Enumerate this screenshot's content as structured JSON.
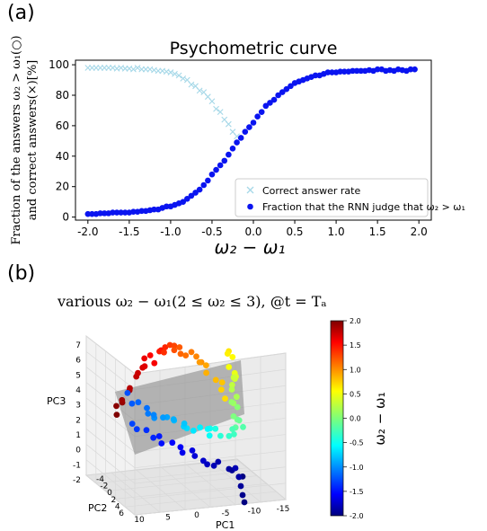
{
  "panel_a_label": "(a)",
  "panel_b_label": "(b)",
  "chart_data": [
    {
      "type": "scatter",
      "title": "Psychometric curve",
      "xlabel": "ω₂ − ω₁",
      "ylabel_line1": "Fraction of the answers ω₂ > ω₁(○)",
      "ylabel_line2": "and correct answers(×)[%]",
      "xlim": [
        -2.15,
        2.15
      ],
      "ylim": [
        -2,
        103
      ],
      "xticks": [
        "-2.0",
        "-1.5",
        "-1.0",
        "-0.5",
        "0.0",
        "0.5",
        "1.0",
        "1.5",
        "2.0"
      ],
      "xtick_values": [
        -2.0,
        -1.5,
        -1.0,
        -0.5,
        0.0,
        0.5,
        1.0,
        1.5,
        2.0
      ],
      "yticks": [
        "0",
        "20",
        "40",
        "60",
        "80",
        "100"
      ],
      "ytick_values": [
        0,
        20,
        40,
        60,
        80,
        100
      ],
      "grid": false,
      "legend_position": "lower-right",
      "series": [
        {
          "name": "Correct answer rate",
          "marker": "x",
          "color": "#a6d8e8",
          "x": [
            -2.0,
            -1.95,
            -1.9,
            -1.85,
            -1.8,
            -1.75,
            -1.7,
            -1.65,
            -1.6,
            -1.55,
            -1.5,
            -1.45,
            -1.4,
            -1.35,
            -1.3,
            -1.25,
            -1.2,
            -1.15,
            -1.1,
            -1.05,
            -1.0,
            -0.95,
            -0.9,
            -0.85,
            -0.8,
            -0.75,
            -0.7,
            -0.65,
            -0.6,
            -0.55,
            -0.5,
            -0.45,
            -0.4,
            -0.35,
            -0.3,
            -0.25,
            -0.2
          ],
          "y": [
            98,
            98,
            98,
            98,
            98,
            98,
            98,
            97.5,
            98,
            97.5,
            97.5,
            97,
            98,
            97,
            97,
            97,
            96.5,
            96,
            96,
            95.5,
            95,
            94,
            93,
            91,
            90,
            87,
            86,
            83,
            82,
            79,
            76,
            71,
            69,
            64,
            61,
            56,
            53
          ]
        },
        {
          "name": "Fraction that the RNN judge that ω₂ > ω₁",
          "marker": "o",
          "color": "#0a14f0",
          "x": [
            -2.0,
            -1.95,
            -1.9,
            -1.85,
            -1.8,
            -1.75,
            -1.7,
            -1.65,
            -1.6,
            -1.55,
            -1.5,
            -1.45,
            -1.4,
            -1.35,
            -1.3,
            -1.25,
            -1.2,
            -1.15,
            -1.1,
            -1.05,
            -1.0,
            -0.95,
            -0.9,
            -0.85,
            -0.8,
            -0.75,
            -0.7,
            -0.65,
            -0.6,
            -0.55,
            -0.5,
            -0.45,
            -0.4,
            -0.35,
            -0.3,
            -0.25,
            -0.2,
            -0.15,
            -0.1,
            -0.05,
            0.0,
            0.05,
            0.1,
            0.15,
            0.2,
            0.25,
            0.3,
            0.35,
            0.4,
            0.45,
            0.5,
            0.55,
            0.6,
            0.65,
            0.7,
            0.75,
            0.8,
            0.85,
            0.9,
            0.95,
            1.0,
            1.05,
            1.1,
            1.15,
            1.2,
            1.25,
            1.3,
            1.35,
            1.4,
            1.45,
            1.5,
            1.55,
            1.6,
            1.65,
            1.7,
            1.75,
            1.8,
            1.85,
            1.9,
            1.95
          ],
          "y": [
            2,
            2,
            2,
            2.5,
            2.5,
            2.5,
            3,
            3,
            3,
            3,
            3,
            3.5,
            3.5,
            4,
            4,
            4.5,
            5,
            5,
            6,
            7,
            7,
            8,
            9,
            10,
            12,
            14,
            16,
            18,
            21,
            24,
            28,
            31,
            34,
            37,
            41,
            45,
            49,
            52,
            56,
            59,
            62,
            66,
            69,
            73,
            75,
            77,
            80,
            82,
            84,
            86,
            88,
            89,
            90,
            91,
            92,
            93,
            93,
            94,
            95,
            95,
            95,
            95.5,
            95.5,
            95.5,
            96,
            96,
            96,
            96,
            96.5,
            96,
            97,
            97,
            96,
            96.5,
            96,
            97,
            96.5,
            96,
            97,
            97
          ]
        }
      ]
    },
    {
      "type": "scatter",
      "title": "various ω₂ − ω₁(2 ≤ ω₂ ≤ 3), @t = Tₐ",
      "xlabel": "PC1",
      "ylabel": "PC2",
      "zlabel": "PC3",
      "colorbar_label": "ω₂ − ω₁",
      "colorbar_range": [
        -2.0,
        2.0
      ],
      "colorbar_ticks": [
        "2.0",
        "1.5",
        "1.0",
        "0.5",
        "0.0",
        "-0.5",
        "-1.0",
        "-1.5",
        "-2.0"
      ],
      "x_ticks": [
        "10",
        "5",
        "0",
        "-5",
        "-10",
        "-15"
      ],
      "y_ticks": [
        "-4",
        "-2",
        "0",
        "2",
        "4",
        "6"
      ],
      "z_ticks": [
        "7",
        "6",
        "5",
        "4",
        "3",
        "2",
        "1",
        "0",
        "-1",
        "-2"
      ],
      "colormap": "jet",
      "grid": true,
      "points_color_value_sequence": [
        2.0,
        1.95,
        1.9,
        1.85,
        1.8,
        1.75,
        1.7,
        1.65,
        1.6,
        1.5,
        1.4,
        1.3,
        1.2,
        1.1,
        1.0,
        0.9,
        0.8,
        0.7,
        0.6,
        0.5,
        0.4,
        0.3,
        0.2,
        0.1,
        0.0,
        -0.1,
        -0.2,
        -0.3,
        -0.4,
        -0.5,
        -0.6,
        -0.7,
        -0.8,
        -0.9,
        -1.0,
        -1.1,
        -1.2,
        -1.3,
        -1.4,
        -1.5,
        -1.6,
        -1.7,
        -1.8,
        -1.9,
        -2.0
      ]
    }
  ]
}
